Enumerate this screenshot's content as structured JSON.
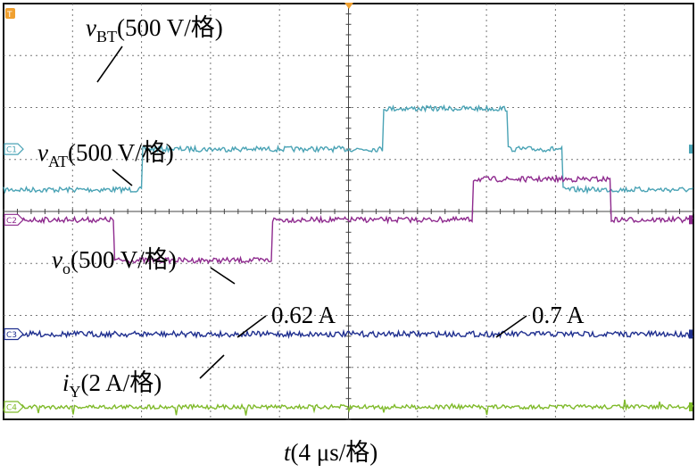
{
  "chart_data": {
    "type": "line",
    "xlabel": {
      "var": "t",
      "scale": "(4 μs/格)"
    },
    "x_divisions": 10,
    "y_divisions": 8,
    "grid": true,
    "trigger_marker": "T",
    "series": [
      {
        "name": "vBT",
        "label_var": "v",
        "label_sub": "BT",
        "label_scale": "(500 V/格)",
        "channel": "C1",
        "color": "#4aa3b5",
        "ground_div": 3.5,
        "x": [
          0.0,
          0.2,
          0.2,
          0.55,
          0.55,
          0.73,
          0.73,
          0.81,
          0.81,
          1.0
        ],
        "y": [
          -1.0,
          -1.0,
          0.0,
          0.0,
          1.0,
          1.0,
          0.0,
          0.0,
          -1.0,
          -1.0
        ]
      },
      {
        "name": "vAT",
        "label_var": "v",
        "label_sub": "AT",
        "label_scale": "(500 V/格)",
        "channel": "C2",
        "color": "#8e2a8e",
        "ground_div": 5.2,
        "x": [
          0.0,
          0.16,
          0.16,
          0.39,
          0.39,
          0.68,
          0.68,
          0.88,
          0.88,
          1.0
        ],
        "y": [
          0.0,
          0.0,
          -1.0,
          -1.0,
          0.0,
          0.0,
          1.0,
          1.0,
          0.0,
          0.0
        ]
      },
      {
        "name": "vo",
        "label_var": "v",
        "label_sub": "o",
        "label_scale": "(500 V/格)",
        "channel": "C3",
        "color": "#1f2f8f",
        "ground_div": 7.95,
        "x": [
          0.0,
          1.0
        ],
        "y": [
          0.0,
          0.0
        ]
      },
      {
        "name": "iY",
        "label_var": "i",
        "label_sub": "Y",
        "label_scale": "(2 A/格)",
        "channel": "C4",
        "color": "#7fba2a",
        "ground_div": 9.7,
        "x": [
          0.0,
          1.0
        ],
        "y": [
          0.0,
          0.0
        ]
      }
    ],
    "annotations": [
      {
        "text": "0.62 A",
        "target_series": "iY"
      },
      {
        "text": "0.7 A",
        "target_series": "iY"
      }
    ]
  }
}
